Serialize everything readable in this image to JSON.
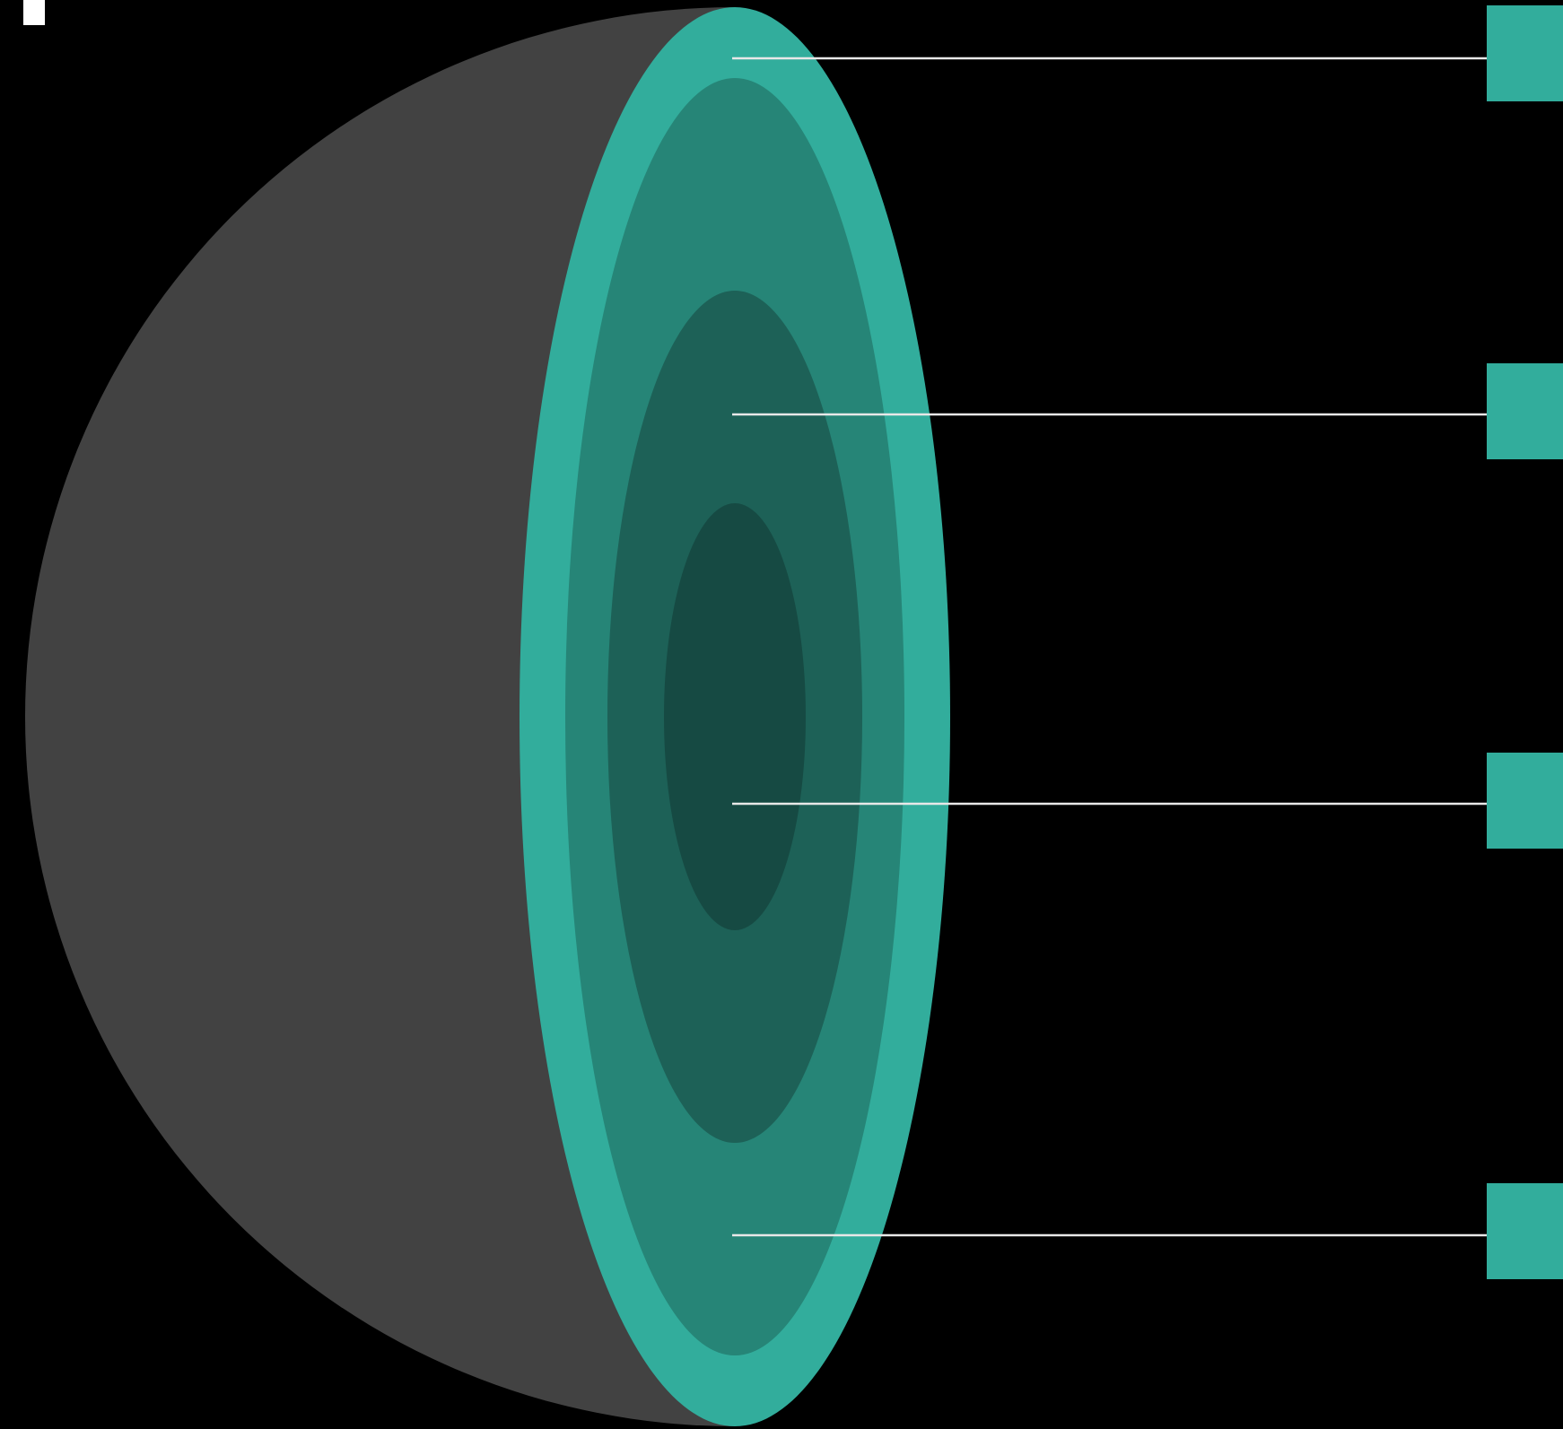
{
  "diagram": {
    "colors": {
      "background": "#000000",
      "shell_exterior": "#424242",
      "crust": "#32ad9c",
      "mantle": "#268577",
      "outer_core": "#1d6157",
      "inner_core": "#164a43",
      "leader_line": "#e8e8e8",
      "label_box": "#32ad9c",
      "corner_mark": "#ffffff"
    },
    "layers": [
      {
        "id": "crust",
        "label": ""
      },
      {
        "id": "mantle",
        "label": ""
      },
      {
        "id": "outer-core",
        "label": ""
      },
      {
        "id": "inner-core",
        "label": ""
      }
    ],
    "callouts": [
      {
        "layer": "crust",
        "label": ""
      },
      {
        "layer": "outer-core",
        "label": ""
      },
      {
        "layer": "inner-core",
        "label": ""
      },
      {
        "layer": "mantle",
        "label": ""
      }
    ]
  }
}
